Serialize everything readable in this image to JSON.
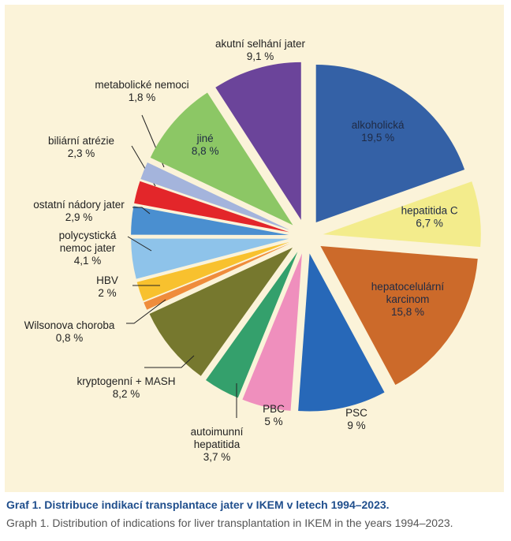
{
  "caption": {
    "cz": "Graf 1. Distribuce indikací transplantace jater v IKEM v letech 1994–2023.",
    "en": "Graph 1. Distribution of indications for liver transplantation in IKEM in the years 1994–2023."
  },
  "chart_data": {
    "type": "pie",
    "title": "",
    "slices": [
      {
        "label": [
          "alkoholická"
        ],
        "value_text": "19,5 %",
        "value": 19.5,
        "color": "#3461a6"
      },
      {
        "label": [
          "hepatitida C"
        ],
        "value_text": "6,7 %",
        "value": 6.7,
        "color": "#f3ec8c"
      },
      {
        "label": [
          "hepatocelulární",
          "karcinom"
        ],
        "value_text": "15,8 %",
        "value": 15.8,
        "color": "#cc6a2a"
      },
      {
        "label": [
          "PSC"
        ],
        "value_text": "9 %",
        "value": 9.0,
        "color": "#2768b8"
      },
      {
        "label": [
          "PBC"
        ],
        "value_text": "5 %",
        "value": 5.0,
        "color": "#ef8fbd"
      },
      {
        "label": [
          "autoimunní",
          "hepatitida"
        ],
        "value_text": "3,7 %",
        "value": 3.7,
        "color": "#34a06c"
      },
      {
        "label": [
          "kryptogenní + MASH"
        ],
        "value_text": "8,2 %",
        "value": 8.2,
        "color": "#76782e"
      },
      {
        "label": [
          "Wilsonova choroba"
        ],
        "value_text": "0,8 %",
        "value": 0.8,
        "color": "#ef8c3c"
      },
      {
        "label": [
          "HBV"
        ],
        "value_text": "2 %",
        "value": 2.0,
        "color": "#f8c12e"
      },
      {
        "label": [
          "polycystická",
          "nemoc jater"
        ],
        "value_text": "4,1 %",
        "value": 4.1,
        "color": "#8ec3ea"
      },
      {
        "label": [
          "ostatní nádory jater"
        ],
        "value_text": "2,9 %",
        "value": 2.9,
        "color": "#4a8fd0"
      },
      {
        "label": [
          "biliární atrézie"
        ],
        "value_text": "2,3 %",
        "value": 2.3,
        "color": "#e3262a"
      },
      {
        "label": [
          "metabolické nemoci"
        ],
        "value_text": "1,8 %",
        "value": 1.8,
        "color": "#a4b4dc"
      },
      {
        "label": [
          "jiné"
        ],
        "value_text": "8,8 %",
        "value": 8.8,
        "color": "#8cc765"
      },
      {
        "label": [
          "akutní selhání jater"
        ],
        "value_text": "9,1 %",
        "value": 9.1,
        "color": "#6b449a"
      }
    ]
  }
}
